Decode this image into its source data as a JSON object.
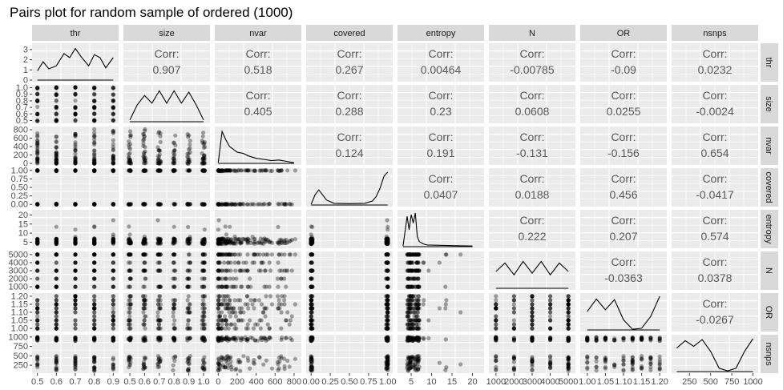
{
  "chart_data": {
    "type": "scatter",
    "title": "Pairs plot for random sample of ordered (1000)",
    "variables": [
      "thr",
      "size",
      "nvar",
      "covered",
      "entropy",
      "N",
      "OR",
      "nsnps"
    ],
    "corr_label": "Corr:",
    "correlations": [
      [
        "",
        "0.907",
        "0.518",
        "0.267",
        "0.00464",
        "-0.00785",
        "-0.09",
        "0.0232"
      ],
      [
        "",
        "",
        "0.405",
        "0.288",
        "0.23",
        "0.0608",
        "0.0255",
        "-0.0024"
      ],
      [
        "",
        "",
        "",
        "0.124",
        "0.191",
        "-0.131",
        "-0.156",
        "0.654"
      ],
      [
        "",
        "",
        "",
        "",
        "0.0407",
        "0.0188",
        "0.456",
        "-0.0417"
      ],
      [
        "",
        "",
        "",
        "",
        "",
        "0.222",
        "0.207",
        "0.574"
      ],
      [
        "",
        "",
        "",
        "",
        "",
        "",
        "-0.0363",
        "0.0378"
      ],
      [
        "",
        "",
        "",
        "",
        "",
        "",
        "",
        "-0.0267"
      ],
      [
        "",
        "",
        "",
        "",
        "",
        "",
        "",
        ""
      ]
    ],
    "x_ticks": [
      [
        "0.5",
        "0.6",
        "0.7",
        "0.8",
        "0.9"
      ],
      [
        "0.5",
        "0.6",
        "0.7",
        "0.8",
        "0.9",
        "1.0"
      ],
      [
        "0",
        "200",
        "400",
        "600",
        "800"
      ],
      [
        "0.00",
        "0.25",
        "0.50",
        "0.75",
        "1.00"
      ],
      [
        "5",
        "10",
        "15",
        "20"
      ],
      [
        "1000",
        "2000",
        "3000",
        "4000",
        "5000"
      ],
      [
        "1.00",
        "1.05",
        "1.10",
        "1.15",
        "1.20"
      ],
      [
        "250",
        "500",
        "750",
        "1000"
      ]
    ],
    "y_ticks": [
      [
        "0",
        "1",
        "2",
        "3"
      ],
      [
        "0.5",
        "0.6",
        "0.7",
        "0.8",
        "0.9",
        "1.0"
      ],
      [
        "0",
        "200",
        "400",
        "600",
        "800"
      ],
      [
        "0.00",
        "0.25",
        "0.50",
        "0.75",
        "1.00"
      ],
      [
        "5",
        "10",
        "15",
        "20"
      ],
      [
        "1000",
        "2000",
        "3000",
        "4000",
        "5000"
      ],
      [
        "1.00",
        "1.05",
        "1.10",
        "1.15",
        "1.20"
      ],
      [
        "250",
        "500",
        "750",
        "1000"
      ]
    ],
    "ranges": [
      [
        0.49,
        0.91
      ],
      [
        0.48,
        1.02
      ],
      [
        0,
        840
      ],
      [
        -0.02,
        1.02
      ],
      [
        2.5,
        22
      ],
      [
        800,
        5200
      ],
      [
        0.99,
        1.21
      ],
      [
        80,
        1020
      ]
    ],
    "density_ymax": [
      3.3,
      1.0,
      1.0,
      1.0,
      1.0,
      1.0,
      1.0,
      1.0
    ],
    "densities": [
      {
        "x": [
          0.5,
          0.53,
          0.56,
          0.6,
          0.64,
          0.67,
          0.7,
          0.73,
          0.77,
          0.8,
          0.83,
          0.86,
          0.9
        ],
        "y": [
          0.9,
          1.8,
          1.1,
          1.4,
          2.6,
          2.2,
          3.1,
          2.3,
          1.4,
          2.5,
          2.2,
          1.2,
          2.2
        ]
      },
      {
        "x": [
          0.5,
          0.55,
          0.6,
          0.65,
          0.7,
          0.75,
          0.8,
          0.85,
          0.9,
          0.95,
          1.0
        ],
        "y": [
          0.05,
          0.5,
          0.78,
          0.55,
          0.92,
          0.55,
          0.92,
          0.55,
          0.88,
          0.5,
          0.05
        ]
      },
      {
        "x": [
          0,
          40,
          80,
          120,
          160,
          200,
          260,
          320,
          400,
          480,
          560,
          640,
          720,
          800
        ],
        "y": [
          0.02,
          0.95,
          0.7,
          0.5,
          0.42,
          0.33,
          0.3,
          0.22,
          0.15,
          0.12,
          0.08,
          0.1,
          0.06,
          0.02
        ]
      },
      {
        "x": [
          0.0,
          0.05,
          0.1,
          0.15,
          0.2,
          0.3,
          0.5,
          0.7,
          0.8,
          0.85,
          0.9,
          0.95,
          1.0
        ],
        "y": [
          0.02,
          0.3,
          0.45,
          0.3,
          0.15,
          0.05,
          0.04,
          0.05,
          0.12,
          0.25,
          0.5,
          0.85,
          0.98
        ]
      },
      {
        "x": [
          3,
          4,
          4.5,
          5,
          5.5,
          6,
          6.5,
          7,
          8,
          9,
          12,
          15,
          20
        ],
        "y": [
          0.02,
          0.9,
          0.5,
          0.95,
          0.7,
          1.0,
          0.3,
          0.15,
          0.08,
          0.05,
          0.04,
          0.03,
          0.02
        ]
      },
      {
        "x": [
          1000,
          1500,
          2000,
          2500,
          3000,
          3500,
          4000,
          4500,
          5000
        ],
        "y": [
          0.5,
          0.75,
          0.4,
          0.8,
          0.45,
          0.8,
          0.4,
          0.75,
          0.5
        ]
      },
      {
        "x": [
          1.0,
          1.025,
          1.05,
          1.075,
          1.1,
          1.125,
          1.15,
          1.175,
          1.2
        ],
        "y": [
          0.55,
          0.92,
          0.6,
          0.9,
          0.3,
          0.02,
          0.05,
          0.4,
          1.0
        ]
      },
      {
        "x": [
          100,
          200,
          300,
          400,
          500,
          600,
          700,
          800,
          900,
          1000
        ],
        "y": [
          0.7,
          0.92,
          0.75,
          0.95,
          0.6,
          0.1,
          0.02,
          0.1,
          0.6,
          0.98
        ]
      }
    ]
  }
}
